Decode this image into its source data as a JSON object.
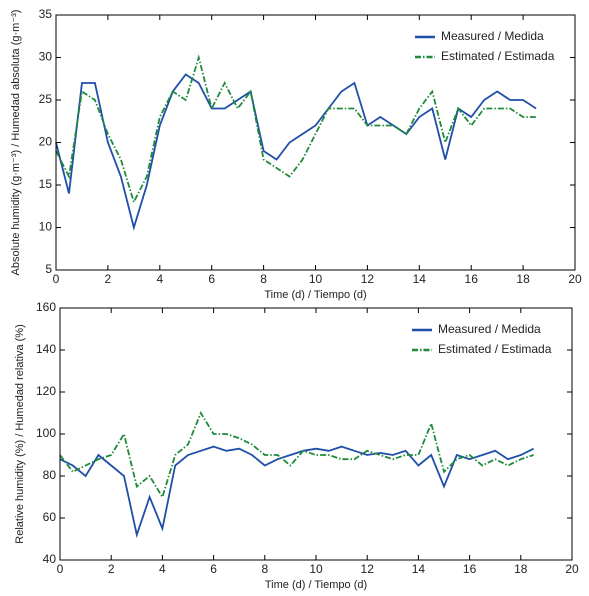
{
  "chart_data": [
    {
      "type": "line",
      "x_label": "Time (d) / Tiempo (d)",
      "y_label": "Absolute humidity (g·m⁻³) / Humedad absoluta (g·m⁻³)",
      "x": [
        0,
        0.5,
        1,
        1.5,
        2,
        2.5,
        3,
        3.5,
        4,
        4.5,
        5,
        5.5,
        6,
        6.5,
        7,
        7.5,
        8,
        8.5,
        9,
        9.5,
        10,
        10.5,
        11,
        11.5,
        12,
        12.5,
        13,
        13.5,
        14,
        14.5,
        15,
        15.5,
        16,
        16.5,
        17,
        17.5,
        18,
        18.5
      ],
      "series": [
        {
          "name": "Measured / Medida",
          "color": "#1f4fa8",
          "dash": "solid",
          "values": [
            20,
            14,
            27,
            27,
            20,
            16,
            10,
            15,
            22,
            26,
            28,
            27,
            24,
            24,
            25,
            26,
            19,
            18,
            20,
            21,
            22,
            24,
            26,
            27,
            22,
            23,
            22,
            21,
            23,
            24,
            18,
            24,
            23,
            25,
            26,
            25,
            25,
            24
          ]
        },
        {
          "name": "Estimated / Estimada",
          "color": "#1e8a3a",
          "dash": "dashdot",
          "values": [
            19,
            16,
            26,
            25,
            21,
            18,
            13,
            16,
            23,
            26,
            25,
            30,
            24,
            27,
            24,
            26,
            18,
            17,
            16,
            18,
            21,
            24,
            24,
            24,
            22,
            22,
            22,
            21,
            24,
            26,
            20,
            24,
            22,
            24,
            24,
            24,
            23,
            23
          ]
        }
      ],
      "xlim": [
        0,
        20
      ],
      "xticks": [
        0,
        2,
        4,
        6,
        8,
        10,
        12,
        14,
        16,
        18,
        20
      ],
      "ylim": [
        5,
        35
      ],
      "yticks": [
        5,
        10,
        15,
        20,
        25,
        30,
        35
      ],
      "legend": "upper right"
    },
    {
      "type": "line",
      "x_label": "Time (d) / Tiempo (d)",
      "y_label": "Relative humidity (%) / Humedad relativa (%)",
      "x": [
        0,
        0.5,
        1,
        1.5,
        2,
        2.5,
        3,
        3.5,
        4,
        4.5,
        5,
        5.5,
        6,
        6.5,
        7,
        7.5,
        8,
        8.5,
        9,
        9.5,
        10,
        10.5,
        11,
        11.5,
        12,
        12.5,
        13,
        13.5,
        14,
        14.5,
        15,
        15.5,
        16,
        16.5,
        17,
        17.5,
        18,
        18.5
      ],
      "series": [
        {
          "name": "Measured / Medida",
          "color": "#1f4fa8",
          "dash": "solid",
          "values": [
            88,
            85,
            80,
            90,
            85,
            80,
            52,
            70,
            55,
            85,
            90,
            92,
            94,
            92,
            93,
            90,
            85,
            88,
            90,
            92,
            93,
            92,
            94,
            92,
            90,
            91,
            90,
            92,
            85,
            90,
            75,
            90,
            88,
            90,
            92,
            88,
            90,
            93
          ]
        },
        {
          "name": "Estimated / Estimada",
          "color": "#1e8a3a",
          "dash": "dashdot",
          "values": [
            90,
            82,
            85,
            88,
            90,
            100,
            75,
            80,
            70,
            90,
            95,
            110,
            100,
            100,
            98,
            95,
            90,
            90,
            85,
            92,
            90,
            90,
            88,
            88,
            92,
            90,
            88,
            90,
            90,
            105,
            82,
            88,
            90,
            85,
            88,
            85,
            88,
            90
          ]
        }
      ],
      "xlim": [
        0,
        20
      ],
      "xticks": [
        0,
        2,
        4,
        6,
        8,
        10,
        12,
        14,
        16,
        18,
        20
      ],
      "ylim": [
        40,
        160
      ],
      "yticks": [
        40,
        60,
        80,
        100,
        120,
        140,
        160
      ],
      "legend": "upper right"
    }
  ]
}
